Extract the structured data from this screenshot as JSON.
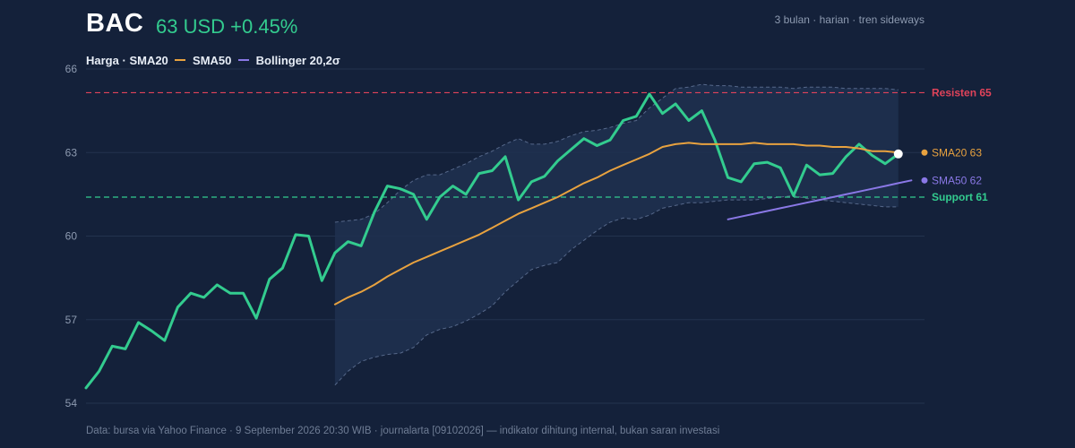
{
  "header": {
    "ticker": "BAC",
    "price_text": "63 USD +0.45%",
    "subtitle": "3 bulan · harian · tren sideways"
  },
  "legend": {
    "price": "Harga",
    "sma20": "SMA20",
    "sma50": "SMA50",
    "bollinger": "Bollinger 20,2σ"
  },
  "footer": "Data: bursa via Yahoo Finance · 9 September 2026 20:30 WIB · journalarta [09102026] — indikator dihitung internal, bukan saran investasi",
  "colors": {
    "background": "#14213a",
    "price": "#33cc8f",
    "sma20": "#e8a23f",
    "sma50": "#8a78e6",
    "band_fill": "#1f3050",
    "band_line": "#56688a",
    "resistance": "#e0435a",
    "support": "#33cc8f"
  },
  "chart_data": {
    "type": "line",
    "title": "BAC",
    "ylim": [
      54,
      66
    ],
    "y_ticks": [
      54,
      57,
      60,
      63,
      66
    ],
    "grid": true,
    "x_count": 65,
    "series": [
      {
        "name": "Harga",
        "start_index": 0,
        "values": [
          54.55,
          55.15,
          56.05,
          55.95,
          56.9,
          56.6,
          56.25,
          57.45,
          57.95,
          57.8,
          58.25,
          57.95,
          57.95,
          57.05,
          58.45,
          58.85,
          60.05,
          60.0,
          58.4,
          59.4,
          59.8,
          59.65,
          60.85,
          61.8,
          61.7,
          61.5,
          60.6,
          61.4,
          61.8,
          61.5,
          62.25,
          62.35,
          62.85,
          61.3,
          61.95,
          62.15,
          62.7,
          63.1,
          63.5,
          63.25,
          63.45,
          64.15,
          64.3,
          65.1,
          64.4,
          64.75,
          64.15,
          64.5,
          63.45,
          62.1,
          61.95,
          62.6,
          62.65,
          62.45,
          61.45,
          62.55,
          62.2,
          62.25,
          62.85,
          63.3,
          62.9,
          62.6,
          62.95
        ]
      },
      {
        "name": "SMA20",
        "start_index": 19,
        "values": [
          57.55,
          57.8,
          58.0,
          58.25,
          58.55,
          58.8,
          59.05,
          59.25,
          59.45,
          59.65,
          59.85,
          60.05,
          60.3,
          60.55,
          60.8,
          61.0,
          61.2,
          61.4,
          61.65,
          61.9,
          62.1,
          62.35,
          62.55,
          62.75,
          62.95,
          63.2,
          63.3,
          63.35,
          63.3,
          63.3,
          63.3,
          63.3,
          63.35,
          63.3,
          63.3,
          63.3,
          63.25,
          63.25,
          63.2,
          63.2,
          63.15,
          63.05,
          63.05,
          63.0
        ]
      },
      {
        "name": "SMA50",
        "start_index": 49,
        "values": [
          60.6,
          60.7,
          60.8,
          60.9,
          61.0,
          61.1,
          61.2,
          61.3,
          61.4,
          61.5,
          61.6,
          61.7,
          61.8,
          61.9,
          62.0
        ]
      }
    ],
    "bollinger": {
      "name": "Bollinger 20,2σ",
      "start_index": 19,
      "upper": [
        60.5,
        60.55,
        60.6,
        60.8,
        61.2,
        61.65,
        62.0,
        62.2,
        62.2,
        62.4,
        62.6,
        62.85,
        63.05,
        63.3,
        63.5,
        63.3,
        63.3,
        63.4,
        63.6,
        63.75,
        63.8,
        63.9,
        64.05,
        64.15,
        64.6,
        64.95,
        65.3,
        65.35,
        65.45,
        65.4,
        65.4,
        65.35,
        65.35,
        65.35,
        65.35,
        65.3,
        65.35,
        65.35,
        65.35,
        65.3,
        65.3,
        65.3,
        65.3,
        65.25
      ],
      "lower": [
        54.65,
        55.15,
        55.5,
        55.65,
        55.75,
        55.8,
        56.0,
        56.45,
        56.65,
        56.75,
        56.95,
        57.2,
        57.5,
        58.0,
        58.4,
        58.8,
        58.95,
        59.05,
        59.5,
        59.85,
        60.2,
        60.5,
        60.65,
        60.6,
        60.75,
        61.0,
        61.1,
        61.2,
        61.2,
        61.25,
        61.3,
        61.3,
        61.3,
        61.35,
        61.4,
        61.45,
        61.35,
        61.3,
        61.25,
        61.2,
        61.15,
        61.1,
        61.05,
        61.05
      ]
    },
    "reference_lines": [
      {
        "name": "Resisten 65",
        "value": 65.15,
        "color": "#e0435a"
      },
      {
        "name": "Support 61",
        "value": 61.4,
        "color": "#33cc8f"
      }
    ],
    "end_labels": [
      {
        "text": "SMA20 63",
        "value": 63.0,
        "color": "#e8a23f"
      },
      {
        "text": "SMA50 62",
        "value": 62.0,
        "color": "#8a78e6"
      }
    ]
  }
}
